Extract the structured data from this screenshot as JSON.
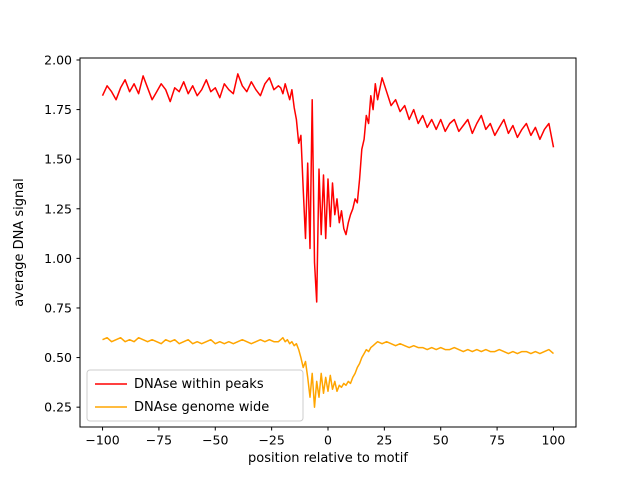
{
  "figure": {
    "background": "#ffffff",
    "axes_edge_color": "#000000"
  },
  "chart_data": {
    "type": "line",
    "title": "",
    "xlabel": "position relative to motif",
    "ylabel": "average DNA signal",
    "xlim": [
      -110,
      110
    ],
    "ylim": [
      0.15,
      2.01
    ],
    "xticks": [
      -100,
      -75,
      -50,
      -25,
      0,
      25,
      50,
      75,
      100
    ],
    "yticks": [
      0.25,
      0.5,
      0.75,
      1.0,
      1.25,
      1.5,
      1.75,
      2.0
    ],
    "grid": false,
    "legend_position": "lower left",
    "x": [
      -100,
      -98,
      -96,
      -94,
      -92,
      -90,
      -88,
      -86,
      -84,
      -82,
      -80,
      -78,
      -76,
      -74,
      -72,
      -70,
      -68,
      -66,
      -64,
      -62,
      -60,
      -58,
      -56,
      -54,
      -52,
      -50,
      -48,
      -46,
      -44,
      -42,
      -40,
      -38,
      -36,
      -34,
      -32,
      -30,
      -28,
      -26,
      -24,
      -22,
      -21,
      -20,
      -19,
      -18,
      -17,
      -16,
      -15,
      -14,
      -13,
      -12,
      -11,
      -10,
      -9,
      -8,
      -7,
      -6,
      -5,
      -4,
      -3,
      -2,
      -1,
      0,
      1,
      2,
      3,
      4,
      5,
      6,
      7,
      8,
      9,
      10,
      11,
      12,
      13,
      14,
      15,
      16,
      17,
      18,
      19,
      20,
      21,
      22,
      24,
      26,
      28,
      30,
      32,
      34,
      36,
      38,
      40,
      42,
      44,
      46,
      48,
      50,
      52,
      54,
      56,
      58,
      60,
      62,
      64,
      66,
      68,
      70,
      72,
      74,
      76,
      78,
      80,
      82,
      84,
      86,
      88,
      90,
      92,
      94,
      96,
      98,
      100
    ],
    "series": [
      {
        "name": "DNAse within peaks",
        "color": "#ff0000",
        "values": [
          1.82,
          1.87,
          1.84,
          1.8,
          1.86,
          1.9,
          1.84,
          1.88,
          1.83,
          1.92,
          1.86,
          1.8,
          1.84,
          1.88,
          1.85,
          1.79,
          1.86,
          1.84,
          1.89,
          1.83,
          1.87,
          1.82,
          1.85,
          1.9,
          1.84,
          1.86,
          1.81,
          1.88,
          1.85,
          1.83,
          1.93,
          1.87,
          1.84,
          1.89,
          1.85,
          1.82,
          1.88,
          1.91,
          1.85,
          1.87,
          1.86,
          1.83,
          1.88,
          1.84,
          1.8,
          1.85,
          1.76,
          1.7,
          1.58,
          1.62,
          1.35,
          1.1,
          1.48,
          1.05,
          1.8,
          0.98,
          0.78,
          1.45,
          1.12,
          1.42,
          1.1,
          1.4,
          1.16,
          1.38,
          1.22,
          1.3,
          1.18,
          1.24,
          1.15,
          1.12,
          1.18,
          1.22,
          1.25,
          1.3,
          1.28,
          1.4,
          1.55,
          1.6,
          1.72,
          1.68,
          1.82,
          1.75,
          1.88,
          1.8,
          1.91,
          1.84,
          1.77,
          1.8,
          1.74,
          1.77,
          1.7,
          1.75,
          1.68,
          1.72,
          1.66,
          1.7,
          1.65,
          1.7,
          1.64,
          1.68,
          1.7,
          1.64,
          1.67,
          1.7,
          1.63,
          1.68,
          1.72,
          1.65,
          1.68,
          1.62,
          1.66,
          1.7,
          1.63,
          1.67,
          1.61,
          1.65,
          1.68,
          1.62,
          1.66,
          1.6,
          1.65,
          1.68,
          1.56
        ]
      },
      {
        "name": "DNAse genome wide",
        "color": "#ffa500",
        "values": [
          0.59,
          0.6,
          0.58,
          0.59,
          0.6,
          0.58,
          0.59,
          0.58,
          0.6,
          0.59,
          0.58,
          0.59,
          0.58,
          0.57,
          0.59,
          0.58,
          0.59,
          0.57,
          0.58,
          0.59,
          0.57,
          0.58,
          0.57,
          0.58,
          0.59,
          0.57,
          0.58,
          0.57,
          0.58,
          0.57,
          0.58,
          0.59,
          0.58,
          0.57,
          0.58,
          0.59,
          0.58,
          0.59,
          0.58,
          0.58,
          0.59,
          0.6,
          0.58,
          0.59,
          0.57,
          0.58,
          0.56,
          0.57,
          0.54,
          0.5,
          0.45,
          0.48,
          0.4,
          0.3,
          0.42,
          0.25,
          0.38,
          0.3,
          0.42,
          0.32,
          0.4,
          0.33,
          0.41,
          0.34,
          0.38,
          0.33,
          0.36,
          0.35,
          0.37,
          0.36,
          0.38,
          0.37,
          0.4,
          0.42,
          0.45,
          0.47,
          0.5,
          0.52,
          0.54,
          0.53,
          0.55,
          0.56,
          0.57,
          0.58,
          0.57,
          0.58,
          0.57,
          0.56,
          0.57,
          0.56,
          0.55,
          0.56,
          0.55,
          0.55,
          0.54,
          0.55,
          0.54,
          0.55,
          0.54,
          0.54,
          0.55,
          0.54,
          0.53,
          0.54,
          0.53,
          0.54,
          0.53,
          0.54,
          0.53,
          0.53,
          0.54,
          0.53,
          0.52,
          0.53,
          0.52,
          0.53,
          0.53,
          0.52,
          0.53,
          0.52,
          0.53,
          0.54,
          0.52
        ]
      }
    ]
  }
}
